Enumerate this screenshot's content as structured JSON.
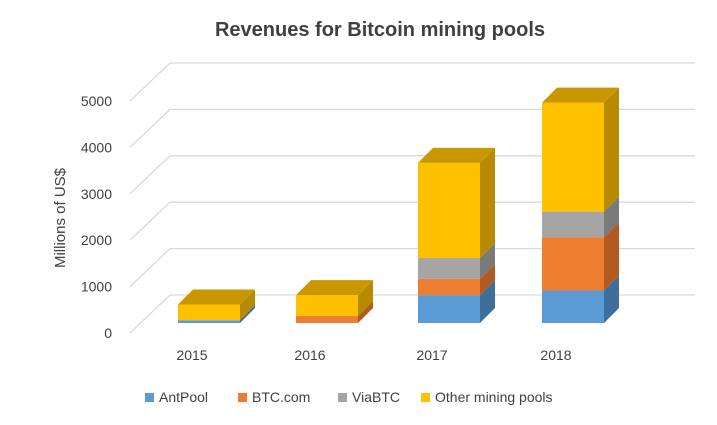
{
  "chart_data": {
    "type": "bar",
    "stacked": true,
    "three_d": true,
    "title": "Revenues for Bitcoin mining pools",
    "xlabel": "",
    "ylabel": "Millions of US$",
    "categories": [
      "2015",
      "2016",
      "2017",
      "2018"
    ],
    "yticks": [
      "0",
      "1000",
      "2000",
      "3000",
      "4000",
      "5000"
    ],
    "ylim": [
      0,
      5000
    ],
    "grid": true,
    "legend_position": "bottom",
    "series": [
      {
        "name": "AntPool",
        "color": "#5B9BD5",
        "side_color": "#3E6E9C",
        "top_color": "#4A86BE",
        "values": [
          60,
          0,
          600,
          700
        ]
      },
      {
        "name": "BTC.com",
        "color": "#ED7D31",
        "side_color": "#B25A20",
        "top_color": "#D56B25",
        "values": [
          0,
          150,
          350,
          1150
        ]
      },
      {
        "name": "ViaBTC",
        "color": "#A5A5A5",
        "side_color": "#7A7A7A",
        "top_color": "#959595",
        "values": [
          0,
          0,
          450,
          550
        ]
      },
      {
        "name": "Other mining pools",
        "color": "#FFC000",
        "side_color": "#B88A00",
        "top_color": "#C99800",
        "values": [
          340,
          450,
          2050,
          2350
        ]
      }
    ]
  }
}
